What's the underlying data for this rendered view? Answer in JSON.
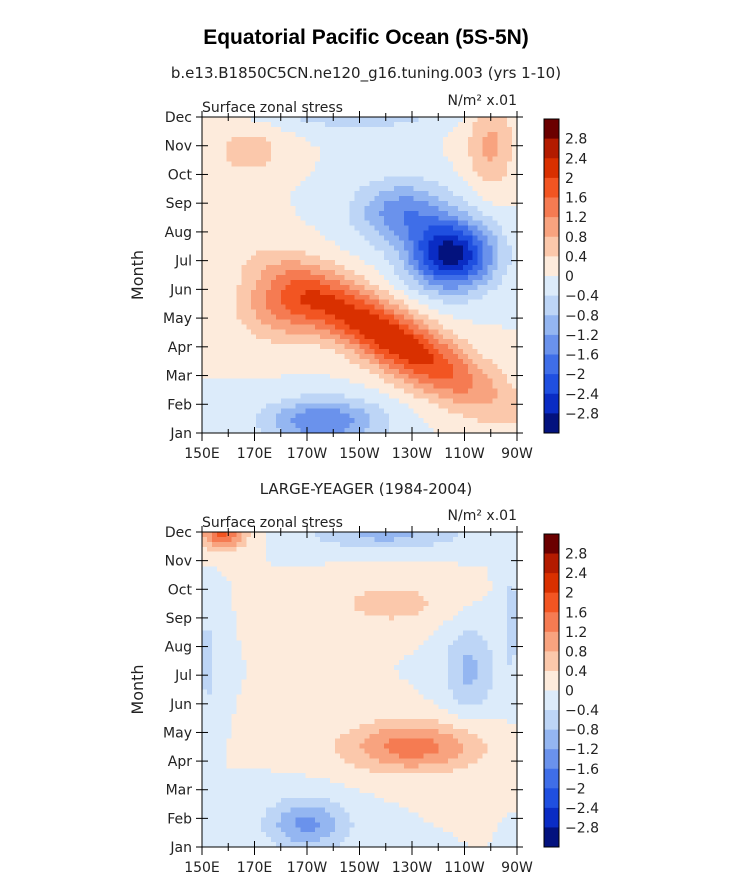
{
  "figure": {
    "title": "Equatorial Pacific Ocean (5S-5N)"
  },
  "chart_data": [
    {
      "type": "heatmap",
      "subtitle": "b.e13.B1850C5CN.ne120_g16.tuning.003 (yrs 1-10)",
      "left_label": "Surface zonal stress",
      "right_label": "N/m² x.01",
      "xlabel": "",
      "ylabel": "Month",
      "x_ticks": [
        "150E",
        "170E",
        "170W",
        "150W",
        "130W",
        "110W",
        "90W"
      ],
      "y_ticks": [
        "Jan",
        "Feb",
        "Mar",
        "Apr",
        "May",
        "Jun",
        "Jul",
        "Aug",
        "Sep",
        "Oct",
        "Nov",
        "Dec"
      ],
      "xlim": [
        150,
        270
      ],
      "ylim": [
        1,
        12
      ],
      "contour_levels": [
        -2.8,
        -2.4,
        -2,
        -1.6,
        -1.2,
        -0.8,
        -0.4,
        0,
        0.4,
        0.8,
        1.2,
        1.6,
        2,
        2.4,
        2.8
      ],
      "features": [
        {
          "lon": 222,
          "month": 4.3,
          "value": 2.4,
          "spread_lon": 38,
          "spread_month": 1.2,
          "tilt": -5.0
        },
        {
          "lon": 182,
          "month": 5.4,
          "value": 1.2,
          "spread_lon": 18,
          "spread_month": 1.2
        },
        {
          "lon": 245,
          "month": 7.2,
          "value": -3.0,
          "spread_lon": 16,
          "spread_month": 1.2
        },
        {
          "lon": 226,
          "month": 8.7,
          "value": -1.4,
          "spread_lon": 18,
          "spread_month": 1.1
        },
        {
          "lon": 210,
          "month": 12.3,
          "value": -1.2,
          "spread_lon": 28,
          "spread_month": 0.6
        },
        {
          "lon": 196,
          "month": 1.4,
          "value": -1.6,
          "spread_lon": 22,
          "spread_month": 0.8
        },
        {
          "lon": 168,
          "month": 10.8,
          "value": 0.7,
          "spread_lon": 12,
          "spread_month": 0.8
        },
        {
          "lon": 260,
          "month": 11.0,
          "value": 0.9,
          "spread_lon": 9,
          "spread_month": 1.5
        }
      ]
    },
    {
      "type": "heatmap",
      "subtitle": "LARGE-YEAGER (1984-2004)",
      "left_label": "Surface zonal stress",
      "right_label": "N/m² x.01",
      "xlabel": "",
      "ylabel": "Month",
      "x_ticks": [
        "150E",
        "170E",
        "170W",
        "150W",
        "130W",
        "110W",
        "90W"
      ],
      "y_ticks": [
        "Jan",
        "Feb",
        "Mar",
        "Apr",
        "May",
        "Jun",
        "Jul",
        "Aug",
        "Sep",
        "Oct",
        "Nov",
        "Dec"
      ],
      "xlim": [
        150,
        270
      ],
      "ylim": [
        1,
        12
      ],
      "contour_levels": [
        -2.8,
        -2.4,
        -2,
        -1.6,
        -1.2,
        -0.8,
        -0.4,
        0,
        0.4,
        0.8,
        1.2,
        1.6,
        2,
        2.4,
        2.8
      ],
      "features": [
        {
          "lon": 230,
          "month": 4.5,
          "value": 1.4,
          "spread_lon": 26,
          "spread_month": 0.9
        },
        {
          "lon": 158,
          "month": 12.0,
          "value": 1.7,
          "spread_lon": 9,
          "spread_month": 0.6
        },
        {
          "lon": 222,
          "month": 9.5,
          "value": 0.6,
          "spread_lon": 22,
          "spread_month": 0.8
        },
        {
          "lon": 190,
          "month": 1.8,
          "value": -1.3,
          "spread_lon": 16,
          "spread_month": 0.9
        },
        {
          "lon": 252,
          "month": 7.2,
          "value": -0.9,
          "spread_lon": 10,
          "spread_month": 1.5
        },
        {
          "lon": 220,
          "month": 11.9,
          "value": -0.9,
          "spread_lon": 30,
          "spread_month": 0.5
        },
        {
          "lon": 152,
          "month": 7.5,
          "value": -0.6,
          "spread_lon": 4,
          "spread_month": 1.8
        },
        {
          "lon": 268,
          "month": 9.0,
          "value": -0.5,
          "spread_lon": 4,
          "spread_month": 2.5
        }
      ]
    }
  ],
  "colorbar": {
    "labels": [
      "2.8",
      "2.4",
      "2",
      "1.6",
      "1.2",
      "0.8",
      "0.4",
      "0",
      "−0.4",
      "−0.8",
      "−1.2",
      "−1.6",
      "−2",
      "−2.4",
      "−2.8"
    ],
    "colors": [
      "#6b0000",
      "#b31b00",
      "#d93000",
      "#f25522",
      "#f57b52",
      "#f8a37f",
      "#fbc8ab",
      "#fdebdc",
      "#dcebfa",
      "#bdd5f6",
      "#94b6f1",
      "#6a92ec",
      "#3f6ee8",
      "#1f4fe0",
      "#0a2cc4",
      "#03127e"
    ]
  }
}
